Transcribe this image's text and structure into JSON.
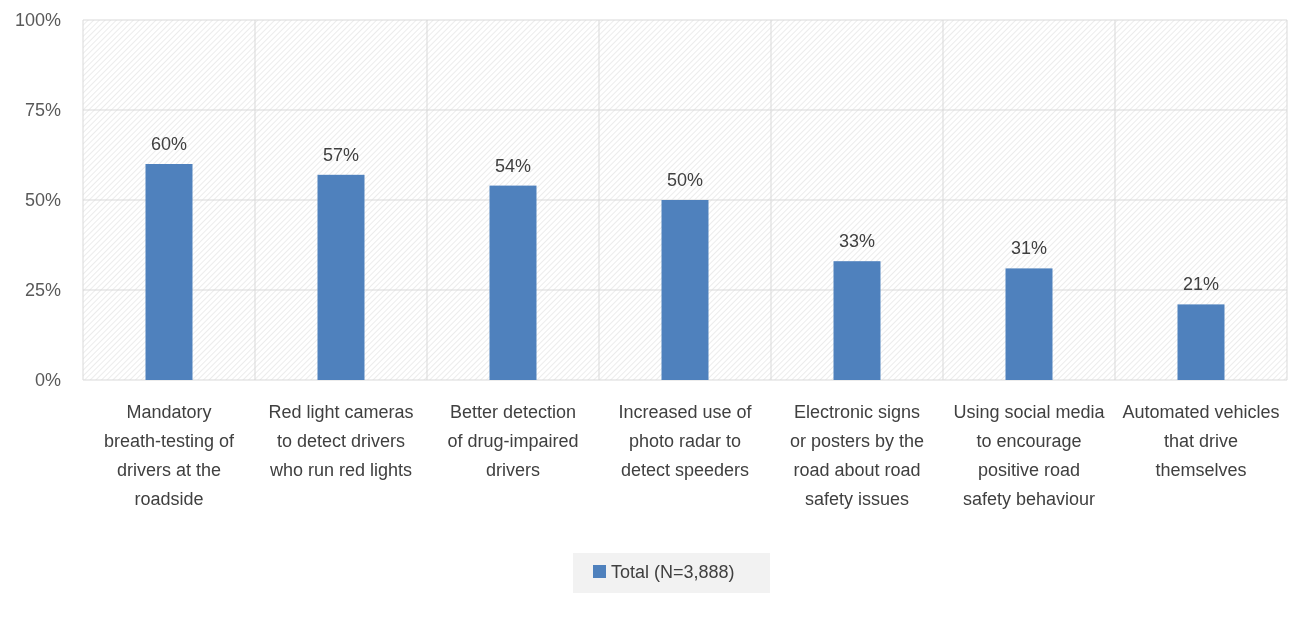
{
  "chart_data": {
    "type": "bar",
    "categories": [
      "Mandatory breath-testing of drivers at the roadside",
      "Red light cameras to detect drivers who run red lights",
      "Better detection of drug-impaired drivers",
      "Increased use of photo radar to detect speeders",
      "Electronic signs or posters by the road about road safety issues",
      "Using social media to encourage positive road safety behaviour",
      "Automated vehicles that drive themselves"
    ],
    "series": [
      {
        "name": "Total (N=3,888)",
        "color": "#4f81bd",
        "values": [
          60,
          57,
          54,
          50,
          33,
          31,
          21
        ]
      }
    ],
    "value_labels": [
      "60%",
      "57%",
      "54%",
      "50%",
      "33%",
      "31%",
      "21%"
    ],
    "ylim": [
      0,
      100
    ],
    "yticks": [
      {
        "value": 0,
        "label": "0%"
      },
      {
        "value": 25,
        "label": "25%"
      },
      {
        "value": 50,
        "label": "50%"
      },
      {
        "value": 75,
        "label": "75%"
      },
      {
        "value": 100,
        "label": "100%"
      }
    ],
    "grid": true,
    "legend": "bottom"
  }
}
